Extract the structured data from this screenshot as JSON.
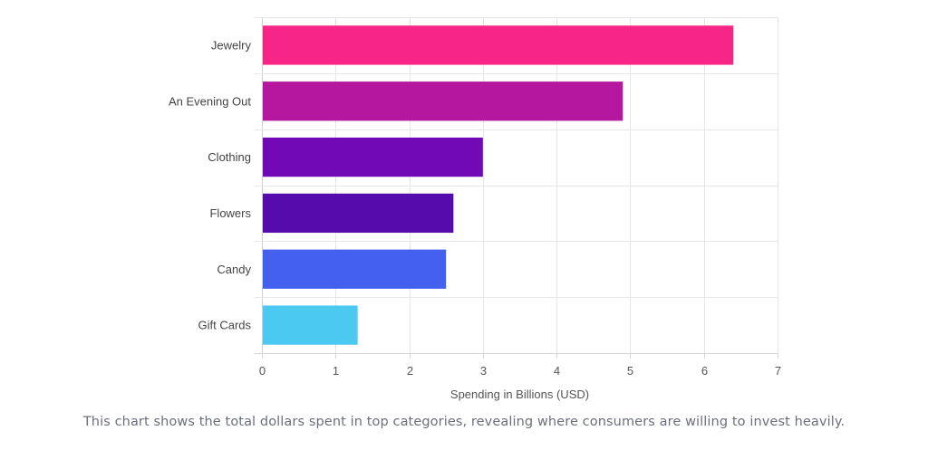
{
  "chart_data": {
    "type": "bar",
    "orientation": "horizontal",
    "categories": [
      "Jewelry",
      "An Evening Out",
      "Clothing",
      "Flowers",
      "Candy",
      "Gift Cards"
    ],
    "values": [
      6.4,
      4.9,
      3.0,
      2.6,
      2.5,
      1.3
    ],
    "colors": [
      "#f72585",
      "#b5179e",
      "#7209b7",
      "#560bad",
      "#4361ee",
      "#4cc9f0"
    ],
    "xlabel": "Spending in Billions (USD)",
    "ylabel": "",
    "xlim": [
      0,
      7
    ],
    "xticks": [
      "0",
      "1",
      "2",
      "3",
      "4",
      "5",
      "6",
      "7"
    ],
    "grid": true,
    "legend": "none"
  },
  "caption": "This chart shows the total dollars spent in top categories, revealing where consumers are willing to invest heavily."
}
